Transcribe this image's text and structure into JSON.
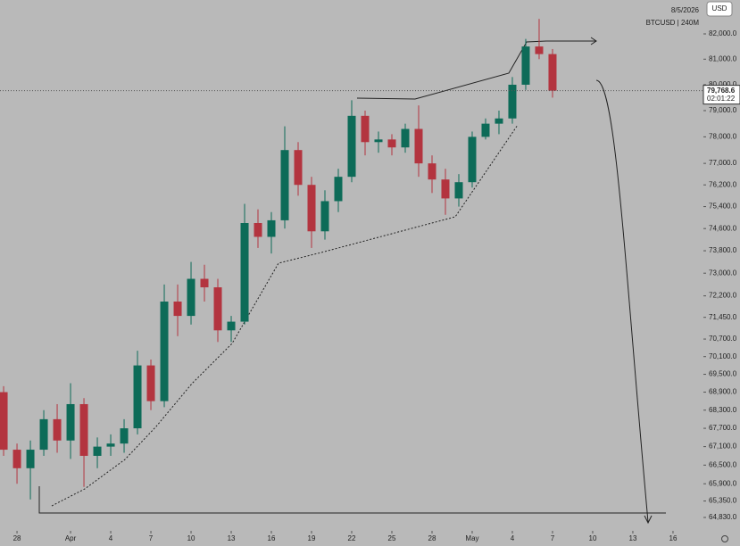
{
  "chart_data": {
    "type": "candlestick",
    "currency": "USD",
    "date": "8/5/2026",
    "symbol": "BTCUSD | 240M",
    "last_price": {
      "value": 79768.6,
      "label": "79,768.6"
    },
    "countdown": "02:01:22",
    "log_scale": true,
    "up_color": "#0d6b58",
    "down_color": "#b3343f",
    "x": [
      -1,
      0,
      1,
      2,
      3,
      4,
      5,
      6,
      7,
      8,
      9,
      10,
      11,
      12,
      13,
      14,
      15,
      16,
      17,
      18,
      19,
      20,
      21,
      22,
      23,
      24,
      25,
      26,
      27,
      28,
      29,
      30,
      31,
      32,
      33,
      34,
      35,
      36,
      37,
      38,
      39,
      40
    ],
    "open": [
      68900,
      67000,
      66400,
      67000,
      68000,
      67300,
      68500,
      66800,
      67100,
      67200,
      67700,
      69800,
      68600,
      72000,
      71500,
      72800,
      72500,
      71000,
      71300,
      74800,
      74300,
      74900,
      77500,
      76200,
      74500,
      75600,
      76500,
      78800,
      77800,
      77900,
      77600,
      78300,
      77000,
      76400,
      75700,
      76300,
      78000,
      78500,
      78700,
      80000,
      81500,
      81200
    ],
    "high": [
      69100,
      67200,
      67300,
      68300,
      68500,
      69200,
      68700,
      67400,
      67500,
      68000,
      70300,
      70000,
      72600,
      72600,
      73400,
      73300,
      72800,
      71500,
      75500,
      75300,
      75200,
      78400,
      77800,
      76500,
      76000,
      76800,
      79400,
      79000,
      78200,
      78100,
      78500,
      79200,
      77300,
      76800,
      76600,
      78200,
      78700,
      79000,
      80300,
      81800,
      82600,
      81400
    ],
    "low": [
      66800,
      65900,
      65400,
      66800,
      66900,
      66700,
      65800,
      66400,
      66800,
      66900,
      67500,
      68300,
      68400,
      70800,
      71200,
      72000,
      70600,
      70600,
      71200,
      73900,
      73700,
      74600,
      75800,
      73900,
      74200,
      75200,
      76300,
      77300,
      77400,
      77300,
      77400,
      76500,
      75900,
      75100,
      75400,
      76100,
      77900,
      78100,
      78500,
      79800,
      81000,
      79500
    ],
    "close": [
      67000,
      66400,
      67000,
      68000,
      67300,
      68500,
      66800,
      67100,
      67200,
      67700,
      69800,
      68600,
      72000,
      71500,
      72800,
      72500,
      71000,
      71300,
      74800,
      74300,
      74900,
      77500,
      76200,
      74500,
      75600,
      76500,
      78800,
      77800,
      77900,
      77600,
      78300,
      77000,
      76400,
      75700,
      76300,
      78000,
      78500,
      78700,
      80000,
      81500,
      81200,
      79768.6
    ],
    "xlim": [
      -1.27,
      51.27
    ],
    "xticks": [
      {
        "value": 0,
        "label": "28"
      },
      {
        "value": 4,
        "label": "Apr"
      },
      {
        "value": 7,
        "label": "4"
      },
      {
        "value": 10,
        "label": "7"
      },
      {
        "value": 13,
        "label": "10"
      },
      {
        "value": 16,
        "label": "13"
      },
      {
        "value": 19,
        "label": "16"
      },
      {
        "value": 22,
        "label": "19"
      },
      {
        "value": 25,
        "label": "22"
      },
      {
        "value": 28,
        "label": "25"
      },
      {
        "value": 31,
        "label": "28"
      },
      {
        "value": 34,
        "label": "May"
      },
      {
        "value": 37,
        "label": "4"
      },
      {
        "value": 40,
        "label": "7"
      },
      {
        "value": 43,
        "label": "10"
      },
      {
        "value": 46,
        "label": "13"
      },
      {
        "value": 49,
        "label": "16"
      }
    ],
    "ylim": [
      64410,
      83362
    ],
    "yticks": [
      {
        "value": 82000,
        "label": "82,000.0"
      },
      {
        "value": 81000,
        "label": "81,000.0"
      },
      {
        "value": 80000,
        "label": "80,000.0"
      },
      {
        "value": 79000,
        "label": "79,000.0"
      },
      {
        "value": 78000,
        "label": "78,000.0"
      },
      {
        "value": 77000,
        "label": "77,000.0"
      },
      {
        "value": 76200,
        "label": "76,200.0"
      },
      {
        "value": 75400,
        "label": "75,400.0"
      },
      {
        "value": 74600,
        "label": "74,600.0"
      },
      {
        "value": 73800,
        "label": "73,800.0"
      },
      {
        "value": 73000,
        "label": "73,000.0"
      },
      {
        "value": 72200,
        "label": "72,200.0"
      },
      {
        "value": 71450,
        "label": "71,450.0"
      },
      {
        "value": 70700,
        "label": "70,700.0"
      },
      {
        "value": 70100,
        "label": "70,100.0"
      },
      {
        "value": 69500,
        "label": "69,500.0"
      },
      {
        "value": 68900,
        "label": "68,900.0"
      },
      {
        "value": 68300,
        "label": "68,300.0"
      },
      {
        "value": 67700,
        "label": "67,700.0"
      },
      {
        "value": 67100,
        "label": "67,100.0"
      },
      {
        "value": 66500,
        "label": "66,500.0"
      },
      {
        "value": 65900,
        "label": "65,900.0"
      },
      {
        "value": 65350,
        "label": "65,350.0"
      },
      {
        "value": 64830,
        "label": "64,830.0"
      }
    ]
  }
}
